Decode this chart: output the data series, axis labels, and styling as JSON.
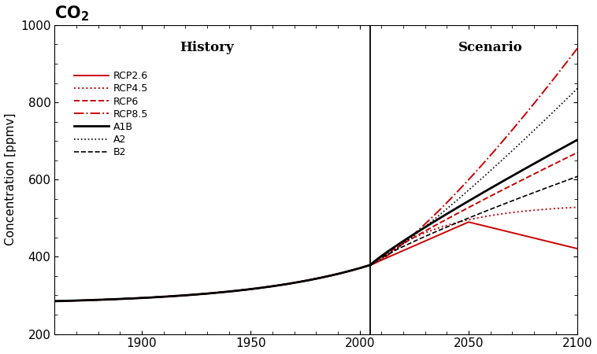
{
  "title": "CO$_2$",
  "ylabel": "Concentration [ppmv]",
  "ylim": [
    200,
    1000
  ],
  "xlim": [
    1860,
    2100
  ],
  "yticks": [
    200,
    400,
    600,
    800,
    1000
  ],
  "xticks": [
    1900,
    1950,
    2000,
    2050,
    2100
  ],
  "divider_year": 2005,
  "history_label": "History",
  "scenario_label": "Scenario",
  "red_color": "#cc0000",
  "black_color": "#000000",
  "background_color": "#ffffff",
  "co2_1860": 285,
  "co2_2005": 379,
  "rcp26_2100": 421,
  "rcp26_peak_yr": 2050,
  "rcp26_peak": 490,
  "rcp45_2100": 538,
  "rcp6_2100": 670,
  "rcp85_2100": 940,
  "a1b_2100": 703,
  "a2_2100": 836,
  "b2_2100": 608
}
